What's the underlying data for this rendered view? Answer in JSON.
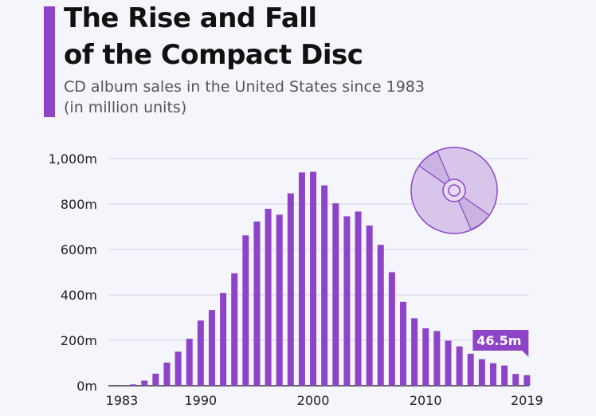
{
  "header": {
    "title_line1": "The Rise and Fall",
    "title_line2": "of the Compact Disc",
    "subtitle_line1": "CD album sales in the United States since 1983",
    "subtitle_line2": "(in million units)"
  },
  "colors": {
    "accent": "#8e44c9",
    "bar": "#8e44c9",
    "disc_fill": "#d7c6ea"
  },
  "icons": [
    "compact-disc-icon"
  ],
  "chart_data": {
    "type": "bar",
    "title": "The Rise and Fall of the Compact Disc",
    "subtitle": "CD album sales in the United States since 1983 (in million units)",
    "xlabel": "",
    "ylabel": "",
    "categories": [
      1983,
      1984,
      1985,
      1986,
      1987,
      1988,
      1989,
      1990,
      1991,
      1992,
      1993,
      1994,
      1995,
      1996,
      1997,
      1998,
      1999,
      2000,
      2001,
      2002,
      2003,
      2004,
      2005,
      2006,
      2007,
      2008,
      2009,
      2010,
      2011,
      2012,
      2013,
      2014,
      2015,
      2016,
      2017,
      2018,
      2019
    ],
    "values": [
      0.8,
      5.8,
      22.6,
      53,
      102,
      150,
      207,
      287,
      333,
      408,
      495,
      662,
      723,
      779,
      753,
      847,
      939,
      942,
      882,
      803,
      746,
      767,
      705,
      620,
      500,
      369,
      297,
      253,
      241,
      198,
      173,
      141,
      117,
      99,
      89,
      52,
      46.5
    ],
    "x_tick_labels": [
      "1983",
      "1990",
      "2000",
      "2010",
      "2019"
    ],
    "x_ticks_at": [
      1983,
      1990,
      2000,
      2010,
      2019
    ],
    "y_tick_labels": [
      "0m",
      "200m",
      "400m",
      "600m",
      "800m",
      "1,000m"
    ],
    "y_ticks": [
      0,
      200,
      400,
      600,
      800,
      1000
    ],
    "ylim": [
      0,
      1000
    ],
    "grid": true,
    "annotations": [
      {
        "x": 2019,
        "label": "46.5m"
      }
    ]
  }
}
